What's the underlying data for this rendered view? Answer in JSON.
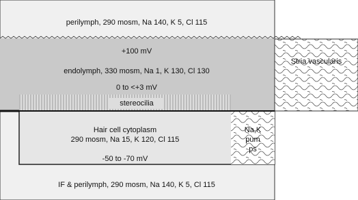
{
  "perilymph": {
    "label": "perilymph, 290 mosm, Na 140, K 5, Cl 115"
  },
  "endolymph": {
    "potential": "+100 mV",
    "label": "endolymph, 330 mosm, Na 1, K 130, Cl 130",
    "reversal": "0 to <+3 mV"
  },
  "stereocilia": {
    "label": "stereocilia"
  },
  "hair_cell": {
    "title": "Hair cell cytoplasm",
    "label": "290 mosm, Na 15, K 120, Cl 115",
    "potential": "-50 to -70 mV"
  },
  "pumps": {
    "lines": [
      "Na,K",
      "pum",
      "ps"
    ]
  },
  "stria": {
    "label": "Stria vascularis"
  },
  "bottom": {
    "label": "IF & perilymph, 290 mosm, Na 140, K 5, Cl 115"
  }
}
